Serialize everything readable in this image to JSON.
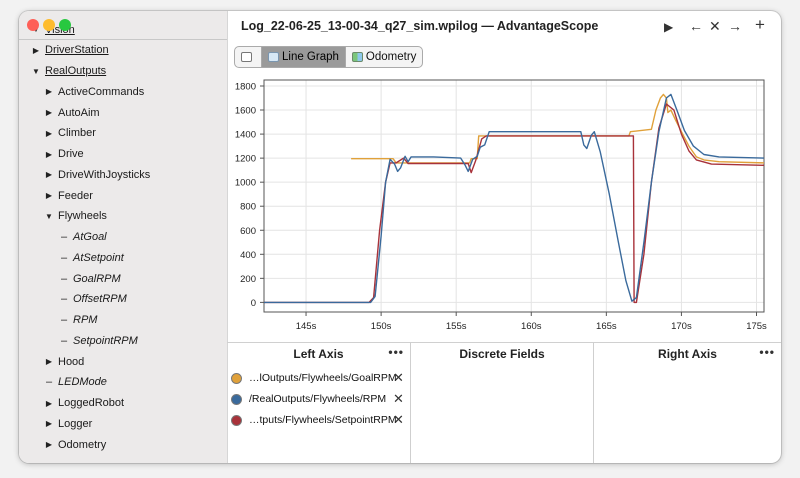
{
  "window": {
    "title": "Log_22-06-25_13-00-34_q27_sim.wpilog — AdvantageScope",
    "toolbar": {
      "play": "▶",
      "back": "←",
      "close": "✕",
      "forward": "→",
      "add": "+"
    }
  },
  "sidebar": {
    "items": [
      {
        "label": "Vision",
        "kind": "expanded",
        "underline": true,
        "italic": false,
        "indent": 0
      },
      {
        "label": "DriverStation",
        "kind": "collapsed",
        "underline": true,
        "italic": false,
        "indent": 0
      },
      {
        "label": "RealOutputs",
        "kind": "expanded",
        "underline": true,
        "italic": false,
        "indent": 0
      },
      {
        "label": "ActiveCommands",
        "kind": "collapsed",
        "underline": false,
        "italic": false,
        "indent": 1
      },
      {
        "label": "AutoAim",
        "kind": "collapsed",
        "underline": false,
        "italic": false,
        "indent": 1
      },
      {
        "label": "Climber",
        "kind": "collapsed",
        "underline": false,
        "italic": false,
        "indent": 1
      },
      {
        "label": "Drive",
        "kind": "collapsed",
        "underline": false,
        "italic": false,
        "indent": 1
      },
      {
        "label": "DriveWithJoysticks",
        "kind": "collapsed",
        "underline": false,
        "italic": false,
        "indent": 1
      },
      {
        "label": "Feeder",
        "kind": "collapsed",
        "underline": false,
        "italic": false,
        "indent": 1
      },
      {
        "label": "Flywheels",
        "kind": "expanded",
        "underline": false,
        "italic": false,
        "indent": 1
      },
      {
        "label": "AtGoal",
        "kind": "leaf",
        "underline": false,
        "italic": true,
        "indent": 2
      },
      {
        "label": "AtSetpoint",
        "kind": "leaf",
        "underline": false,
        "italic": true,
        "indent": 2
      },
      {
        "label": "GoalRPM",
        "kind": "leaf",
        "underline": false,
        "italic": true,
        "indent": 2
      },
      {
        "label": "OffsetRPM",
        "kind": "leaf",
        "underline": false,
        "italic": true,
        "indent": 2
      },
      {
        "label": "RPM",
        "kind": "leaf",
        "underline": false,
        "italic": true,
        "indent": 2
      },
      {
        "label": "SetpointRPM",
        "kind": "leaf",
        "underline": false,
        "italic": true,
        "indent": 2
      },
      {
        "label": "Hood",
        "kind": "collapsed",
        "underline": false,
        "italic": false,
        "indent": 1
      },
      {
        "label": "LEDMode",
        "kind": "leaf",
        "underline": false,
        "italic": true,
        "indent": 1
      },
      {
        "label": "LoggedRobot",
        "kind": "collapsed",
        "underline": false,
        "italic": false,
        "indent": 1
      },
      {
        "label": "Logger",
        "kind": "collapsed",
        "underline": false,
        "italic": false,
        "indent": 1
      },
      {
        "label": "Odometry",
        "kind": "collapsed",
        "underline": false,
        "italic": false,
        "indent": 1
      }
    ]
  },
  "tabs": [
    {
      "label": "",
      "icon": "book-icon",
      "active": false
    },
    {
      "label": "Line Graph",
      "icon": "line-graph-icon",
      "active": true
    },
    {
      "label": "Odometry",
      "icon": "odometry-icon",
      "active": false
    }
  ],
  "chart_data": {
    "type": "line",
    "xlim": [
      142.2,
      175.5
    ],
    "ylim": [
      -80,
      1850
    ],
    "x_ticks": [
      145,
      150,
      155,
      160,
      165,
      170,
      175
    ],
    "x_tick_labels": [
      "145s",
      "150s",
      "155s",
      "160s",
      "165s",
      "170s",
      "175s"
    ],
    "y_ticks": [
      0,
      200,
      400,
      600,
      800,
      1000,
      1200,
      1400,
      1600,
      1800
    ],
    "grid": true,
    "series": [
      {
        "name": "…lOutputs/Flywheels/GoalRPM",
        "color": "#e0a13a",
        "points": [
          [
            148.0,
            1195
          ],
          [
            150.8,
            1195
          ],
          [
            151.0,
            1160
          ],
          [
            155.9,
            1160
          ],
          [
            156.0,
            1195
          ],
          [
            156.4,
            1195
          ],
          [
            156.5,
            1385
          ],
          [
            166.5,
            1385
          ],
          [
            166.6,
            1420
          ],
          [
            168.0,
            1440
          ],
          [
            168.3,
            1600
          ],
          [
            168.6,
            1700
          ],
          [
            168.8,
            1730
          ],
          [
            169.0,
            1700
          ],
          [
            169.1,
            1580
          ],
          [
            169.3,
            1600
          ],
          [
            169.6,
            1520
          ],
          [
            170.0,
            1420
          ],
          [
            170.5,
            1300
          ],
          [
            171.0,
            1210
          ],
          [
            171.5,
            1185
          ],
          [
            172.5,
            1170
          ],
          [
            175.5,
            1160
          ]
        ]
      },
      {
        "name": "/RealOutputs/Flywheels/RPM",
        "color": "#3a6a9c",
        "points": [
          [
            142.2,
            0
          ],
          [
            149.3,
            0
          ],
          [
            149.6,
            50
          ],
          [
            150.0,
            550
          ],
          [
            150.3,
            1000
          ],
          [
            150.6,
            1190
          ],
          [
            150.9,
            1150
          ],
          [
            151.1,
            1090
          ],
          [
            151.3,
            1120
          ],
          [
            151.6,
            1215
          ],
          [
            151.8,
            1170
          ],
          [
            152.0,
            1210
          ],
          [
            153.5,
            1210
          ],
          [
            155.3,
            1200
          ],
          [
            155.6,
            1140
          ],
          [
            155.8,
            1090
          ],
          [
            156.1,
            1190
          ],
          [
            156.4,
            1215
          ],
          [
            156.6,
            1290
          ],
          [
            156.9,
            1310
          ],
          [
            157.2,
            1420
          ],
          [
            160.0,
            1420
          ],
          [
            163.3,
            1420
          ],
          [
            163.5,
            1310
          ],
          [
            163.7,
            1280
          ],
          [
            164.0,
            1390
          ],
          [
            164.2,
            1420
          ],
          [
            164.6,
            1250
          ],
          [
            165.2,
            900
          ],
          [
            165.8,
            500
          ],
          [
            166.3,
            180
          ],
          [
            166.7,
            10
          ],
          [
            167.0,
            40
          ],
          [
            167.5,
            500
          ],
          [
            168.0,
            1000
          ],
          [
            168.5,
            1420
          ],
          [
            169.0,
            1700
          ],
          [
            169.3,
            1730
          ],
          [
            169.7,
            1600
          ],
          [
            170.2,
            1430
          ],
          [
            170.8,
            1300
          ],
          [
            171.5,
            1230
          ],
          [
            172.5,
            1210
          ],
          [
            175.5,
            1200
          ]
        ]
      },
      {
        "name": "…tputs/Flywheels/SetpointRPM",
        "color": "#a8323a",
        "points": [
          [
            142.2,
            0
          ],
          [
            149.2,
            0
          ],
          [
            149.5,
            40
          ],
          [
            149.9,
            600
          ],
          [
            150.3,
            1000
          ],
          [
            150.6,
            1160
          ],
          [
            151.0,
            1160
          ],
          [
            151.5,
            1200
          ],
          [
            151.8,
            1155
          ],
          [
            155.8,
            1155
          ],
          [
            156.0,
            1080
          ],
          [
            156.3,
            1180
          ],
          [
            156.7,
            1360
          ],
          [
            157.0,
            1385
          ],
          [
            166.8,
            1385
          ],
          [
            166.85,
            0
          ],
          [
            167.0,
            0
          ],
          [
            167.5,
            400
          ],
          [
            168.0,
            1000
          ],
          [
            168.5,
            1450
          ],
          [
            169.0,
            1650
          ],
          [
            169.5,
            1600
          ],
          [
            170.0,
            1400
          ],
          [
            170.5,
            1260
          ],
          [
            171.0,
            1185
          ],
          [
            172.0,
            1150
          ],
          [
            175.5,
            1140
          ]
        ]
      }
    ]
  },
  "panels": {
    "left": {
      "title": "Left Axis",
      "more": "•••",
      "fields": [
        {
          "label": "…lOutputs/Flywheels/GoalRPM",
          "color": "#e0a13a"
        },
        {
          "label": "/RealOutputs/Flywheels/RPM",
          "color": "#3a6a9c"
        },
        {
          "label": "…tputs/Flywheels/SetpointRPM",
          "color": "#a8323a"
        }
      ]
    },
    "discrete": {
      "title": "Discrete Fields"
    },
    "right": {
      "title": "Right Axis",
      "more": "•••"
    }
  }
}
